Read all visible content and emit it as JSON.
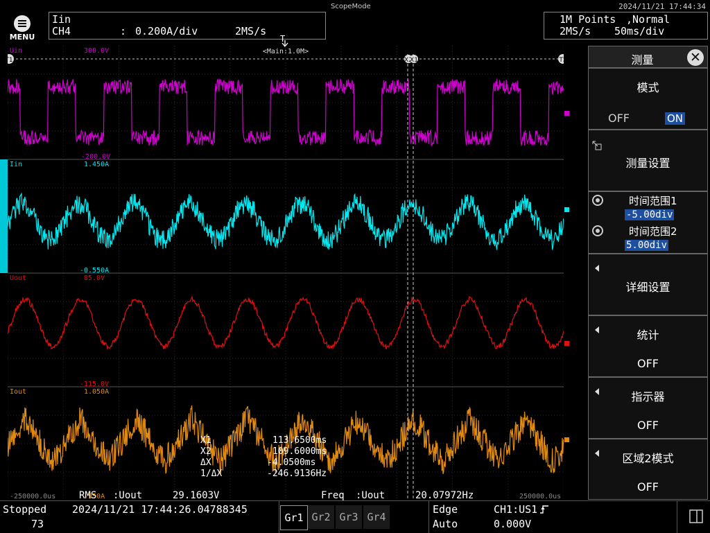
{
  "header": {
    "menu_label": "MENU",
    "app_title": "ScopeMode",
    "datetime": "2024/11/21 17:44:34",
    "channel_name": "Iin",
    "channel": "CH4",
    "channel_sep": ":",
    "vdiv": "0.200A/div",
    "sample_rate": "2MS/s",
    "points": "1M Points",
    "mode": ",Normal",
    "acq_rate": "2MS/s",
    "tdiv": "50ms/div",
    "trigger_marker": "T"
  },
  "plot": {
    "main_label": "<Main:1.0M>",
    "marker_t1": "T1",
    "marker_t2": "T2",
    "marker_x2": "X2",
    "marker_x1": "X1",
    "time_left": "-250000.0us",
    "time_right": "250000.0us",
    "traces": [
      {
        "name": "Uin",
        "top": "300.0V",
        "bottom": "-200.0V",
        "color": "#d000d0"
      },
      {
        "name": "Iin",
        "top": "1.450A",
        "bottom": "-0.550A",
        "color": "#00e8f0"
      },
      {
        "name": "Uout",
        "top": "85.0V",
        "bottom": "-115.0V",
        "color": "#e01010"
      },
      {
        "name": "Iout",
        "top": "1.050A",
        "bottom": "-950A",
        "color": "#e08a10"
      }
    ],
    "cursor": {
      "x1_label": "X1",
      "x1_value": "113.6500ms",
      "x2_label": "X2",
      "x2_value": "109.6000ms",
      "dx_label": "ΔX",
      "dx_value": "-4.0500ms",
      "inv_label": "1/ΔX",
      "inv_value": "-246.9136Hz"
    },
    "meas": {
      "rms_label": "RMS",
      "rms_src": ":Uout",
      "rms_value": "29.1603V",
      "freq_label": "Freq",
      "freq_src": ":Uout",
      "freq_value": "20.07972Hz"
    }
  },
  "panel": {
    "title": "测量",
    "mode_label": "模式",
    "off": "OFF",
    "on": "ON",
    "settings": "测量设置",
    "range1_label": "时间范围1",
    "range1_value": "-5.00div",
    "range2_label": "时间范围2",
    "range2_value": "5.00div",
    "detail": "详细设置",
    "stats": "统计",
    "stats_value": "OFF",
    "indicator": "指示器",
    "indicator_value": "OFF",
    "zone2": "区域2模式",
    "zone2_value": "OFF"
  },
  "footer": {
    "status": "Stopped",
    "count": "73",
    "timestamp": "2024/11/21 17:44:26.04788345",
    "groups": [
      "Gr1",
      "Gr2",
      "Gr3",
      "Gr4"
    ],
    "trig_type": "Edge",
    "trig_mode": "Auto",
    "trig_source": "CH1:US1",
    "trig_level": "0.000V"
  }
}
